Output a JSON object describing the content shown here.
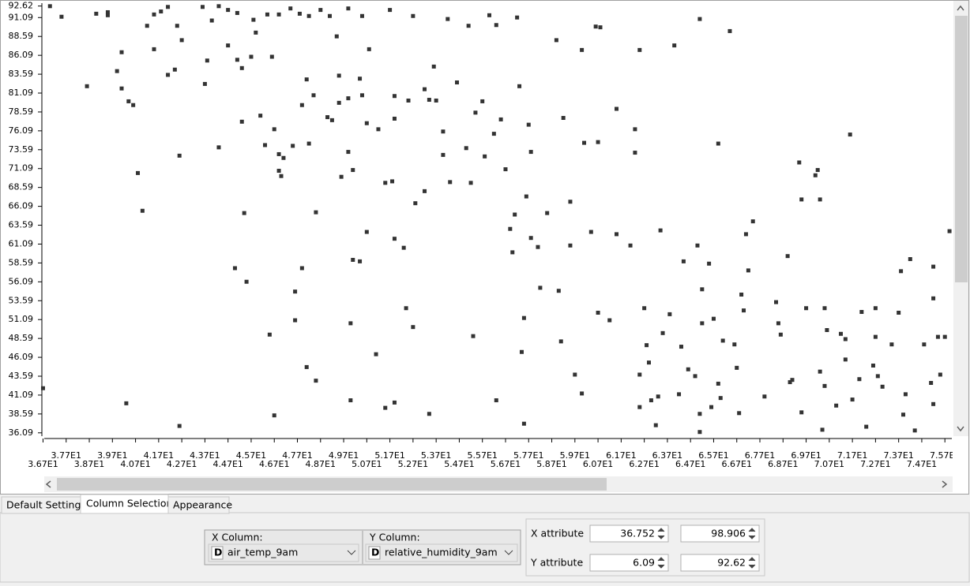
{
  "chart_data": {
    "type": "scatter",
    "color": "#333333",
    "xlim": [
      36.752,
      76.0
    ],
    "ylim": [
      35.65,
      93.0
    ],
    "xticks": [
      {
        "value": 36.7,
        "label": "3.67E1"
      },
      {
        "value": 37.7,
        "label": "3.77E1"
      },
      {
        "value": 38.7,
        "label": "3.87E1"
      },
      {
        "value": 39.7,
        "label": "3.97E1"
      },
      {
        "value": 40.7,
        "label": "4.07E1"
      },
      {
        "value": 41.7,
        "label": "4.17E1"
      },
      {
        "value": 42.7,
        "label": "4.27E1"
      },
      {
        "value": 43.7,
        "label": "4.37E1"
      },
      {
        "value": 44.7,
        "label": "4.47E1"
      },
      {
        "value": 45.7,
        "label": "4.57E1"
      },
      {
        "value": 46.7,
        "label": "4.67E1"
      },
      {
        "value": 47.7,
        "label": "4.77E1"
      },
      {
        "value": 48.7,
        "label": "4.87E1"
      },
      {
        "value": 49.7,
        "label": "4.97E1"
      },
      {
        "value": 50.7,
        "label": "5.07E1"
      },
      {
        "value": 51.7,
        "label": "5.17E1"
      },
      {
        "value": 52.7,
        "label": "5.27E1"
      },
      {
        "value": 53.7,
        "label": "5.37E1"
      },
      {
        "value": 54.7,
        "label": "5.47E1"
      },
      {
        "value": 55.7,
        "label": "5.57E1"
      },
      {
        "value": 56.7,
        "label": "5.67E1"
      },
      {
        "value": 57.7,
        "label": "5.77E1"
      },
      {
        "value": 58.7,
        "label": "5.87E1"
      },
      {
        "value": 59.7,
        "label": "5.97E1"
      },
      {
        "value": 60.7,
        "label": "6.07E1"
      },
      {
        "value": 61.7,
        "label": "6.17E1"
      },
      {
        "value": 62.7,
        "label": "6.27E1"
      },
      {
        "value": 63.7,
        "label": "6.37E1"
      },
      {
        "value": 64.7,
        "label": "6.47E1"
      },
      {
        "value": 65.7,
        "label": "6.57E1"
      },
      {
        "value": 66.7,
        "label": "6.67E1"
      },
      {
        "value": 67.7,
        "label": "6.77E1"
      },
      {
        "value": 68.7,
        "label": "6.87E1"
      },
      {
        "value": 69.7,
        "label": "6.97E1"
      },
      {
        "value": 70.7,
        "label": "7.07E1"
      },
      {
        "value": 71.7,
        "label": "7.17E1"
      },
      {
        "value": 72.7,
        "label": "7.27E1"
      },
      {
        "value": 73.7,
        "label": "7.37E1"
      },
      {
        "value": 74.7,
        "label": "7.47E1"
      },
      {
        "value": 75.7,
        "label": "7.57E1"
      }
    ],
    "yticks": [
      92.62,
      91.09,
      88.59,
      86.09,
      83.59,
      81.09,
      78.59,
      76.09,
      73.59,
      71.09,
      68.59,
      66.09,
      63.59,
      61.09,
      58.59,
      56.09,
      53.59,
      51.09,
      48.59,
      46.09,
      43.59,
      41.09,
      38.59,
      36.09
    ],
    "x": [
      37.0,
      37.5,
      39.0,
      39.5,
      39.5,
      36.7,
      38.6,
      39.9,
      40.1,
      40.1,
      40.4,
      40.6,
      40.3,
      40.8,
      41.0,
      41.2,
      41.5,
      41.5,
      41.8,
      42.1,
      42.1,
      42.4,
      42.5,
      42.6,
      42.6,
      42.7,
      43.6,
      43.7,
      43.8,
      44.0,
      44.3,
      44.3,
      44.7,
      44.7,
      45.1,
      45.1,
      45.3,
      45.3,
      45.4,
      45.0,
      45.5,
      45.7,
      45.8,
      45.9,
      46.1,
      46.3,
      46.5,
      46.6,
      46.7,
      46.7,
      46.9,
      46.9,
      47.0,
      47.1,
      47.5,
      47.6,
      47.6,
      47.9,
      47.9,
      48.1,
      48.1,
      48.2,
      48.5,
      48.5,
      48.4,
      49.0,
      49.2,
      49.4,
      49.5,
      49.6,
      49.5,
      49.9,
      49.9,
      50.0,
      50.0,
      50.1,
      50.1,
      50.4,
      50.5,
      50.4,
      50.7,
      50.7,
      50.8,
      51.1,
      51.2,
      51.5,
      51.5,
      51.8,
      51.9,
      51.9,
      51.9,
      51.9,
      52.3,
      52.4,
      52.5,
      52.7,
      52.8,
      53.2,
      53.2,
      53.4,
      53.6,
      53.7,
      53.4,
      54.0,
      54.0,
      54.3,
      54.6,
      55.0,
      55.2,
      55.3,
      55.4,
      55.7,
      55.8,
      56.3,
      56.2,
      56.5,
      56.7,
      56.9,
      57.0,
      57.1,
      57.3,
      57.5,
      57.4,
      57.5,
      57.6,
      57.7,
      57.8,
      57.8,
      58.1,
      58.2,
      58.5,
      58.9,
      59.0,
      59.1,
      59.2,
      59.5,
      59.5,
      59.7,
      60.0,
      60.0,
      60.1,
      60.4,
      60.7,
      60.7,
      60.8,
      61.2,
      61.5,
      61.5,
      62.1,
      62.3,
      62.3,
      62.5,
      62.5,
      62.5,
      62.7,
      62.8,
      62.9,
      63.0,
      63.2,
      63.3,
      63.4,
      63.5,
      63.8,
      64.0,
      64.2,
      64.3,
      64.4,
      64.6,
      64.9,
      65.0,
      65.1,
      65.1,
      65.2,
      65.2,
      65.5,
      65.6,
      65.7,
      65.9,
      65.9,
      66.0,
      66.1,
      66.4,
      66.6,
      66.7,
      66.8,
      66.9,
      67.0,
      67.1,
      67.2,
      67.4,
      67.9,
      68.4,
      68.5,
      68.6,
      68.9,
      69.0,
      69.1,
      69.4,
      69.5,
      69.5,
      69.7,
      70.1,
      70.2,
      70.3,
      70.4,
      70.3,
      70.5,
      70.5,
      70.6,
      71.0,
      71.2,
      71.4,
      71.4,
      71.6,
      71.7,
      72.0,
      72.1,
      72.3,
      72.6,
      72.7,
      72.7,
      72.8,
      73.0,
      73.4,
      73.7,
      73.8,
      73.9,
      74.0,
      74.2,
      74.4,
      74.8,
      75.1,
      75.2,
      75.2,
      75.2,
      75.4,
      75.5,
      75.7,
      75.9,
      46.4,
      46.9,
      47.4,
      47.8,
      48.2,
      48.7,
      49.1,
      49.9,
      50.5,
      51.7,
      52.7,
      54.2,
      56.0,
      57.2,
      65.1,
      55.1,
      56.3,
      60.6
    ],
    "values": [
      92.6,
      91.2,
      91.6,
      91.8,
      91.4,
      42.0,
      82.0,
      84.0,
      86.5,
      81.7,
      80.0,
      79.5,
      40.0,
      70.5,
      65.5,
      90.0,
      86.9,
      91.5,
      91.9,
      92.5,
      83.5,
      84.2,
      90.0,
      37.0,
      72.8,
      88.1,
      92.5,
      82.3,
      85.4,
      90.7,
      92.6,
      73.9,
      92.1,
      87.4,
      91.7,
      85.5,
      84.4,
      77.3,
      65.2,
      57.9,
      56.1,
      85.9,
      90.8,
      89.1,
      78.1,
      74.2,
      49.1,
      85.9,
      38.4,
      76.3,
      73.0,
      70.8,
      70.1,
      72.5,
      74.1,
      54.8,
      51.0,
      79.5,
      57.9,
      82.9,
      44.8,
      74.4,
      43.0,
      65.3,
      80.8,
      77.9,
      77.5,
      88.6,
      83.4,
      70.0,
      79.8,
      80.4,
      73.3,
      50.6,
      40.4,
      70.9,
      59.0,
      58.8,
      80.8,
      83.0,
      62.7,
      77.1,
      86.9,
      46.5,
      76.3,
      69.2,
      39.4,
      69.4,
      80.7,
      61.8,
      77.7,
      40.1,
      60.6,
      52.6,
      80.1,
      50.1,
      66.5,
      68.1,
      81.6,
      80.2,
      84.6,
      80.1,
      38.6,
      76.0,
      72.9,
      69.3,
      82.5,
      73.8,
      69.2,
      48.9,
      78.5,
      80.0,
      72.7,
      40.4,
      75.7,
      77.6,
      71.0,
      63.1,
      60.0,
      65.0,
      82.0,
      51.3,
      46.8,
      37.3,
      67.4,
      76.9,
      73.3,
      61.9,
      60.7,
      55.3,
      65.2,
      88.1,
      54.9,
      48.2,
      77.8,
      66.7,
      60.9,
      43.8,
      41.3,
      86.8,
      74.5,
      62.7,
      74.6,
      52.0,
      89.8,
      51.0,
      62.4,
      79.0,
      60.9,
      76.3,
      73.2,
      39.5,
      86.8,
      43.8,
      52.6,
      47.7,
      45.4,
      40.4,
      37.1,
      40.9,
      62.9,
      49.3,
      51.8,
      87.4,
      41.2,
      47.5,
      58.8,
      44.5,
      43.6,
      60.9,
      38.6,
      36.2,
      50.6,
      55.1,
      58.5,
      39.5,
      51.2,
      74.4,
      42.6,
      40.7,
      48.3,
      89.3,
      47.8,
      44.7,
      38.7,
      54.4,
      52.3,
      62.4,
      57.6,
      64.1,
      40.9,
      53.4,
      50.6,
      49.1,
      59.5,
      42.8,
      43.1,
      71.9,
      67.0,
      38.8,
      52.6,
      70.2,
      70.9,
      67.0,
      36.5,
      44.2,
      42.3,
      52.6,
      49.7,
      39.7,
      49.2,
      48.5,
      45.8,
      75.6,
      40.5,
      43.2,
      52.1,
      36.9,
      45.0,
      52.6,
      48.8,
      43.6,
      42.2,
      47.8,
      52.0,
      57.5,
      38.5,
      41.2,
      59.1,
      36.4,
      47.8,
      42.7,
      58.1,
      53.9,
      39.9,
      48.8,
      43.8,
      48.8,
      62.8,
      91.5,
      91.5,
      92.3,
      91.6,
      91.3,
      92.1,
      91.3,
      92.3,
      91.3,
      92.1,
      91.3,
      90.9,
      91.4,
      91.1,
      90.9,
      90.0,
      90.1,
      89.9
    ]
  },
  "tabs": [
    "Default Settings",
    "Column Selection",
    "Appearance"
  ],
  "column_selection": {
    "x_label": "X Column:",
    "x_type": "D",
    "x_value": "air_temp_9am",
    "y_label": "Y Column:",
    "y_type": "D",
    "y_value": "relative_humidity_9am"
  },
  "attributes": {
    "x_label": "X attribute",
    "x_min": 36.752,
    "x_max": 98.906,
    "y_label": "Y attribute",
    "y_min": 6.09,
    "y_max": 92.62
  }
}
